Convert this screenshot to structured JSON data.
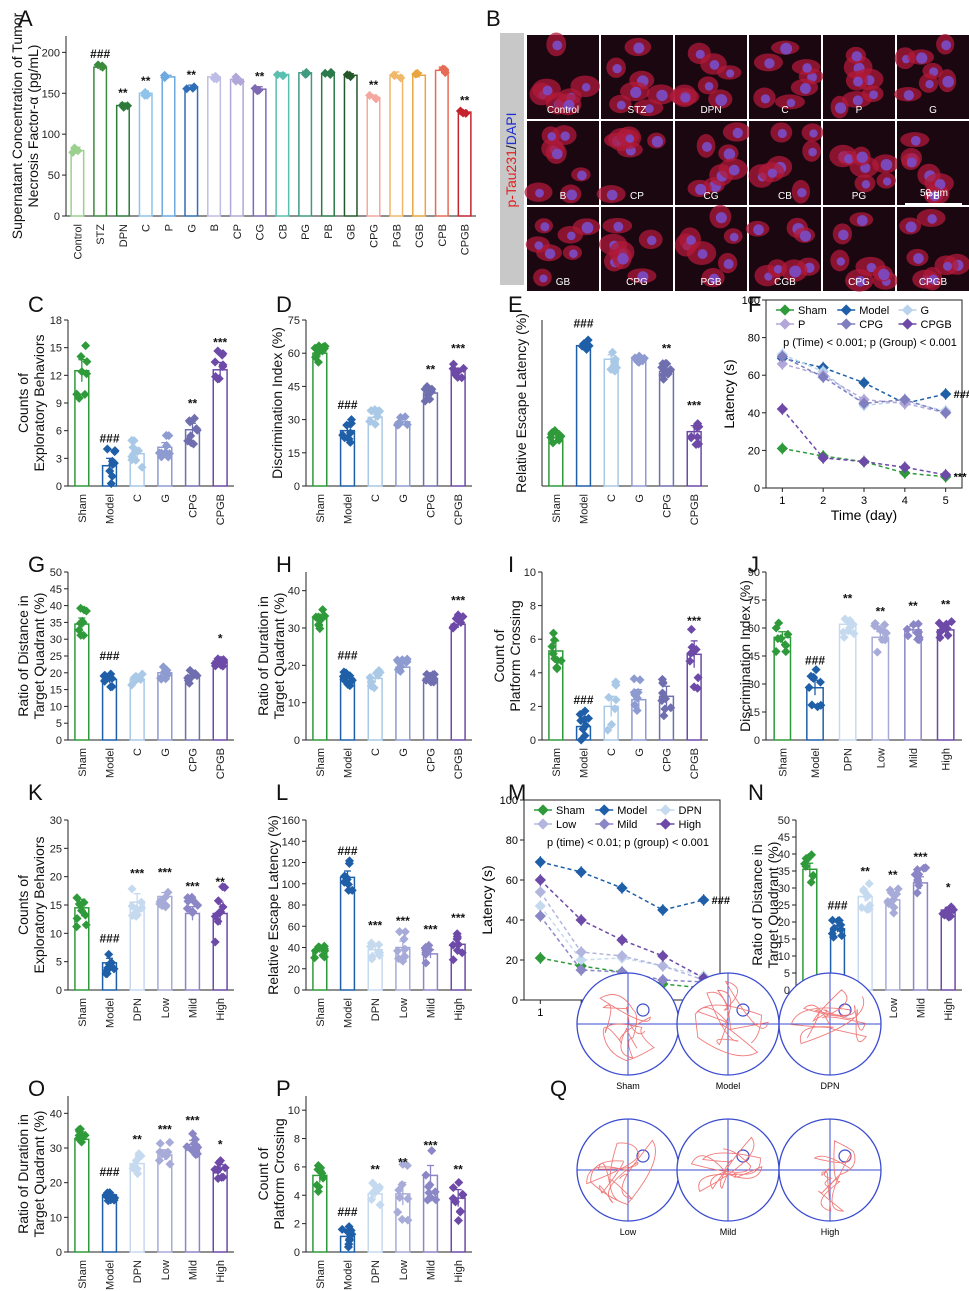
{
  "colors": {
    "Sham": "#2e9a3a",
    "Model": "#1f5fa8",
    "C": "#a9c9e6",
    "G": "#8d9bd0",
    "CPG": "#6f6fb0",
    "CPGB": "#6d4aa8",
    "DPN": "#c6daef",
    "Low": "#a7abd8",
    "Mild": "#8b86c6",
    "High": "#6d4aa8",
    "STZ": "#3c8a3c",
    "Control": "#9bd08f",
    "P": "#9ab2df",
    "B": "#bdbde6",
    "CP": "#b2a7d9",
    "CG": "#7e6ab3",
    "CB": "#5bbfb0",
    "PG": "#3f9a7f",
    "PB": "#2b7a4b",
    "GB": "#24582a",
    "PGB": "#f0b86a",
    "CGB": "#e9a640",
    "CPB": "#e56c55",
    "CPGBred": "#c4232e"
  },
  "panels": {
    "A": {
      "label": "A",
      "ylabel_line1": "Supernatant Concentration of Tumor",
      "ylabel_line2": "Necrosis Factor-α (pg/mL)",
      "ylim": [
        0,
        220
      ],
      "ticks": [
        0,
        50,
        100,
        150,
        200
      ],
      "categories": [
        "Control",
        "STZ",
        "DPN",
        "C",
        "P",
        "G",
        "B",
        "CP",
        "CG",
        "CB",
        "PG",
        "PB",
        "GB",
        "CPG",
        "PGB",
        "CGB",
        "CPB",
        "CPGB"
      ],
      "values": [
        80,
        182,
        135,
        150,
        170,
        157,
        170,
        167,
        155,
        173,
        175,
        174,
        172,
        145,
        172,
        172,
        178,
        127
      ],
      "errs": [
        4,
        4,
        3,
        3,
        2,
        3,
        3,
        3,
        3,
        2,
        2,
        2,
        2,
        3,
        4,
        3,
        4,
        2
      ],
      "marks": [
        "",
        "###",
        "**",
        "**",
        "",
        "**",
        "",
        "",
        "**",
        "",
        "",
        "",
        "",
        "**",
        "",
        "",
        "",
        "**"
      ],
      "bar_colors": [
        "#9bd08f",
        "#3c8a3c",
        "#2e7a3a",
        "#8fc3ea",
        "#6ea9e0",
        "#2f6fb8",
        "#bdbde6",
        "#b2a7d9",
        "#7e6ab3",
        "#5bbfb0",
        "#3f9a7f",
        "#2b7a4b",
        "#24582a",
        "#f4a7a0",
        "#f0b86a",
        "#e9a640",
        "#e56c55",
        "#c4232e"
      ]
    },
    "B": {
      "label": "B",
      "side_label_red": "p-Tau231",
      "side_label_sep": "/",
      "side_label_blue": "DAPI",
      "tiles": [
        "Control",
        "STZ",
        "DPN",
        "C",
        "P",
        "G",
        "B",
        "CP",
        "CG",
        "CB",
        "PG",
        "PB",
        "GB",
        "CPG",
        "PGB",
        "CGB",
        "CPG",
        "CPGB"
      ],
      "scalebar": "50 μm"
    },
    "C": {
      "label": "C",
      "ylabel_line1": "Counts of",
      "ylabel_line2": "Exploratory Behaviors",
      "ylim": [
        0,
        18
      ],
      "ticks": [
        0,
        3,
        6,
        9,
        12,
        15,
        18
      ],
      "categories": [
        "Sham",
        "Model",
        "C",
        "G",
        "CPG",
        "CPGB"
      ],
      "values": [
        12.5,
        2.2,
        3.5,
        4.2,
        6.1,
        12.6
      ],
      "errs": [
        1.2,
        0.8,
        0.6,
        0.5,
        0.7,
        0.8
      ],
      "marks": [
        "",
        "###",
        "",
        "",
        "**",
        "***"
      ]
    },
    "D": {
      "label": "D",
      "ylabel_line1": "Discrimination Index (%)",
      "ylabel_line2": "",
      "ylim": [
        0,
        75
      ],
      "ticks": [
        0,
        15,
        30,
        45,
        60,
        75
      ],
      "categories": [
        "Sham",
        "Model",
        "C",
        "G",
        "CPG",
        "CPGB"
      ],
      "values": [
        60,
        25,
        31,
        29,
        42,
        52
      ],
      "errs": [
        1.8,
        2.5,
        1.5,
        1.5,
        1.5,
        1.2
      ],
      "marks": [
        "",
        "###",
        "",
        "",
        "**",
        "***"
      ]
    },
    "E": {
      "label": "E",
      "ylabel_line1": "Relative Escape Latency (%)",
      "ylabel_line2": "",
      "ylim": [
        0,
        110
      ],
      "ticks": [],
      "categories": [
        "Sham",
        "Model",
        "C",
        "G",
        "CPG",
        "CPGB"
      ],
      "values": [
        32,
        93,
        84,
        84,
        76,
        36
      ],
      "errs": [
        2,
        1.5,
        3,
        1.5,
        2,
        4
      ],
      "marks": [
        "",
        "###",
        "",
        "",
        "**",
        "***"
      ]
    },
    "F": {
      "label": "F",
      "ylabel": "Latency (s)",
      "xlabel": "Time (day)",
      "ylim": [
        0,
        100
      ],
      "ticks": [
        0,
        20,
        40,
        60,
        80,
        100
      ],
      "xticks": [
        1,
        2,
        3,
        4,
        5
      ],
      "annotation": "p (Time) < 0.001; p (Group) < 0.001",
      "mark_model": "###",
      "mark_cpgb": "***",
      "series": [
        {
          "name": "Sham",
          "values": [
            21,
            17,
            14,
            8,
            6
          ],
          "color": "#2e9a3a"
        },
        {
          "name": "Model",
          "values": [
            69,
            64,
            56,
            45,
            50
          ],
          "color": "#1f5fa8"
        },
        {
          "name": "G",
          "values": [
            71,
            62,
            44,
            46,
            41
          ],
          "color": "#b9d3ee"
        },
        {
          "name": "P",
          "values": [
            66,
            60,
            47,
            45,
            40
          ],
          "color": "#b2a7d9"
        },
        {
          "name": "CPG",
          "values": [
            70,
            59,
            45,
            47,
            40
          ],
          "color": "#7f7fbf"
        },
        {
          "name": "CPGB",
          "values": [
            42,
            16,
            14,
            11,
            7
          ],
          "color": "#6d4aa8"
        }
      ]
    },
    "G": {
      "label": "G",
      "ylabel_line1": "Ratio of Distance in",
      "ylabel_line2": "Target Quadrant (%)",
      "ylim": [
        0,
        50
      ],
      "ticks": [
        0,
        5,
        10,
        15,
        20,
        25,
        30,
        35,
        40,
        45,
        50
      ],
      "categories": [
        "Sham",
        "Model",
        "C",
        "G",
        "CPG",
        "CPGB"
      ],
      "values": [
        34.5,
        18,
        18,
        20,
        19,
        23.5
      ],
      "errs": [
        1.8,
        1,
        0.8,
        0.8,
        0.8,
        0.7
      ],
      "marks": [
        "",
        "###",
        "",
        "",
        "",
        "*"
      ]
    },
    "H": {
      "label": "H",
      "ylabel_line1": "Ratio of Duration in",
      "ylabel_line2": "Target Quadrant (%)",
      "ylim": [
        0,
        45
      ],
      "ticks": [
        0,
        10,
        20,
        30,
        40
      ],
      "categories": [
        "Sham",
        "Model",
        "C",
        "G",
        "CPG",
        "CPGB"
      ],
      "values": [
        32.5,
        16.5,
        16.5,
        19.5,
        16.5,
        31
      ],
      "errs": [
        1.2,
        0.8,
        1.2,
        1,
        0.5,
        1
      ],
      "marks": [
        "",
        "###",
        "",
        "",
        "",
        "***"
      ]
    },
    "I": {
      "label": "I",
      "ylabel_line1": "Count of",
      "ylabel_line2": "Platform Crossing",
      "ylim": [
        0,
        10
      ],
      "ticks": [
        0,
        2,
        4,
        6,
        8,
        10
      ],
      "categories": [
        "Sham",
        "Model",
        "C",
        "G",
        "CPG",
        "CPGB"
      ],
      "values": [
        5.3,
        0.8,
        2,
        2.4,
        2.6,
        5.1
      ],
      "errs": [
        0.6,
        0.4,
        0.6,
        0.6,
        0.6,
        0.8
      ],
      "marks": [
        "",
        "###",
        "",
        "",
        "",
        "***"
      ]
    },
    "J": {
      "label": "J",
      "ylabel_line1": "Discrimination Index (%)",
      "ylabel_line2": "",
      "ylim": [
        0,
        90
      ],
      "ticks": [
        0,
        15,
        30,
        45,
        60,
        75,
        90
      ],
      "categories": [
        "Sham",
        "Model",
        "DPN",
        "Low",
        "Mild",
        "High"
      ],
      "values": [
        55,
        28,
        62,
        55,
        59,
        59
      ],
      "errs": [
        3,
        4,
        3,
        3,
        2,
        3
      ],
      "marks": [
        "",
        "###",
        "**",
        "**",
        "**",
        "**"
      ]
    },
    "K": {
      "label": "K",
      "ylabel_line1": "Counts of",
      "ylabel_line2": "Exploratory Behaviors",
      "ylim": [
        0,
        30
      ],
      "ticks": [
        0,
        5,
        10,
        15,
        20,
        25,
        30
      ],
      "categories": [
        "Sham",
        "Model",
        "DPN",
        "Low",
        "Mild",
        "High"
      ],
      "values": [
        14.5,
        4.8,
        15.5,
        16.5,
        13.5,
        13.5
      ],
      "errs": [
        1.5,
        0.8,
        1.5,
        0.7,
        1.2,
        2
      ],
      "marks": [
        "",
        "###",
        "***",
        "***",
        "***",
        "**"
      ]
    },
    "L": {
      "label": "L",
      "ylabel_line1": "Relative Escape Latency (%)",
      "ylabel_line2": "",
      "ylim": [
        0,
        160
      ],
      "ticks": [
        0,
        20,
        40,
        60,
        80,
        100,
        120,
        140,
        160
      ],
      "categories": [
        "Sham",
        "Model",
        "DPN",
        "Low",
        "Mild",
        "High"
      ],
      "values": [
        38,
        106,
        38,
        40,
        34,
        43
      ],
      "errs": [
        3,
        6,
        4,
        6,
        4,
        6
      ],
      "marks": [
        "",
        "###",
        "***",
        "***",
        "***",
        "***"
      ]
    },
    "M": {
      "label": "M",
      "ylabel": "Latency (s)",
      "xlabel": "Time (day)",
      "ylim": [
        0,
        100
      ],
      "ticks": [
        0,
        20,
        40,
        60,
        80,
        100
      ],
      "xticks": [
        1,
        2,
        3,
        4,
        5
      ],
      "annotation": "p (time) < 0.01; p (group) < 0.001",
      "mark_model": "###",
      "mark_high": "***",
      "series": [
        {
          "name": "Sham",
          "values": [
            21,
            17,
            14,
            8,
            6
          ],
          "color": "#2e9a3a"
        },
        {
          "name": "Model",
          "values": [
            69,
            64,
            56,
            45,
            50
          ],
          "color": "#1f5fa8"
        },
        {
          "name": "DPN",
          "values": [
            47,
            20,
            21,
            17,
            12
          ],
          "color": "#c6daef"
        },
        {
          "name": "Low",
          "values": [
            54,
            24,
            22,
            17,
            10
          ],
          "color": "#b2b6de"
        },
        {
          "name": "Mild",
          "values": [
            42,
            15,
            14,
            10,
            9
          ],
          "color": "#8b86c6"
        },
        {
          "name": "High",
          "values": [
            60,
            40,
            30,
            22,
            11
          ],
          "color": "#6d4aa8"
        }
      ]
    },
    "N": {
      "label": "N",
      "ylabel_line1": "Ratio of Distance in",
      "ylabel_line2": "Target Quadrant (%)",
      "ylim": [
        0,
        50
      ],
      "ticks": [
        0,
        5,
        10,
        15,
        20,
        25,
        30,
        35,
        40,
        45,
        50
      ],
      "categories": [
        "Sham",
        "Model",
        "DPN",
        "Low",
        "Mild",
        "High"
      ],
      "values": [
        35.5,
        18,
        27.5,
        26.5,
        31.5,
        23.5
      ],
      "errs": [
        1.8,
        1,
        1.5,
        1.5,
        1.8,
        0.8
      ],
      "marks": [
        "",
        "###",
        "**",
        "**",
        "***",
        "*"
      ]
    },
    "O": {
      "label": "O",
      "ylabel_line1": "Ratio of Duration in",
      "ylabel_line2": "Target Quadrant (%)",
      "ylim": [
        0,
        45
      ],
      "ticks": [
        0,
        10,
        20,
        30,
        40
      ],
      "categories": [
        "Sham",
        "Model",
        "DPN",
        "Low",
        "Mild",
        "High"
      ],
      "values": [
        32.5,
        16.5,
        25.5,
        28,
        31,
        24
      ],
      "errs": [
        1.2,
        0.8,
        1.2,
        1.5,
        1.2,
        1.2
      ],
      "marks": [
        "",
        "###",
        "**",
        "***",
        "***",
        "*"
      ]
    },
    "P": {
      "label": "P",
      "ylabel_line1": "Count of",
      "ylabel_line2": "Platform Crossing",
      "ylim": [
        0,
        11
      ],
      "ticks": [
        0,
        2,
        4,
        6,
        8,
        10
      ],
      "categories": [
        "Sham",
        "Model",
        "DPN",
        "Low",
        "Mild",
        "High"
      ],
      "values": [
        5.4,
        1.1,
        4.1,
        4.1,
        5.4,
        3.8
      ],
      "errs": [
        0.5,
        0.3,
        0.3,
        0.8,
        0.7,
        0.6
      ],
      "marks": [
        "",
        "###",
        "**",
        "**",
        "***",
        "**"
      ]
    },
    "Q": {
      "label": "Q",
      "tracks": [
        "Sham",
        "Model",
        "DPN",
        "Low",
        "Mild",
        "High"
      ]
    }
  }
}
